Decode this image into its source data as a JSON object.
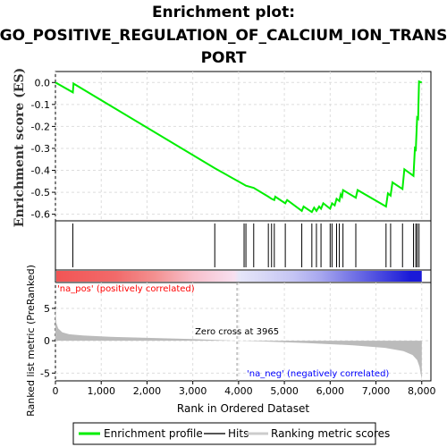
{
  "title_lines": [
    "Enrichment plot:",
    "GO_POSITIVE_REGULATION_OF_CALCIUM_ION_TRANS",
    "PORT"
  ],
  "colors": {
    "profile": "#00ee00",
    "hits": "#000000",
    "metric_fill": "#bbbbbb",
    "pos_label": "#ff0000",
    "neg_label": "#0000ff",
    "grid": "#dddddd"
  },
  "chart_data": [
    {
      "type": "line",
      "name": "Enrichment profile",
      "ylabel": "Enrichment score (ES)",
      "xlim": [
        0,
        8200
      ],
      "ylim": [
        -0.63,
        0.05
      ],
      "yticks": [
        0.0,
        -0.1,
        -0.2,
        -0.3,
        -0.4,
        -0.5,
        -0.6
      ],
      "ytick_labels": [
        "0.0",
        "-0.1",
        "-0.2",
        "-0.3",
        "-0.4",
        "-0.5",
        "-0.6"
      ],
      "grid": true,
      "points": [
        [
          0,
          0.0
        ],
        [
          380,
          -0.045
        ],
        [
          395,
          -0.005
        ],
        [
          3480,
          -0.39
        ],
        [
          4120,
          -0.465
        ],
        [
          4160,
          -0.47
        ],
        [
          4330,
          -0.48
        ],
        [
          4650,
          -0.52
        ],
        [
          4720,
          -0.53
        ],
        [
          4780,
          -0.535
        ],
        [
          4800,
          -0.52
        ],
        [
          5020,
          -0.55
        ],
        [
          5060,
          -0.535
        ],
        [
          5380,
          -0.585
        ],
        [
          5420,
          -0.565
        ],
        [
          5600,
          -0.59
        ],
        [
          5650,
          -0.57
        ],
        [
          5700,
          -0.585
        ],
        [
          5760,
          -0.565
        ],
        [
          5800,
          -0.575
        ],
        [
          5850,
          -0.55
        ],
        [
          6000,
          -0.575
        ],
        [
          6040,
          -0.55
        ],
        [
          6100,
          -0.56
        ],
        [
          6140,
          -0.53
        ],
        [
          6200,
          -0.54
        ],
        [
          6230,
          -0.51
        ],
        [
          6260,
          -0.52
        ],
        [
          6280,
          -0.49
        ],
        [
          6560,
          -0.525
        ],
        [
          6600,
          -0.49
        ],
        [
          7220,
          -0.565
        ],
        [
          7260,
          -0.505
        ],
        [
          7320,
          -0.515
        ],
        [
          7360,
          -0.455
        ],
        [
          7580,
          -0.485
        ],
        [
          7620,
          -0.395
        ],
        [
          7820,
          -0.425
        ],
        [
          7850,
          -0.3
        ],
        [
          7870,
          -0.305
        ],
        [
          7900,
          -0.16
        ],
        [
          7920,
          -0.165
        ],
        [
          7940,
          0.005
        ],
        [
          8000,
          0.0
        ]
      ]
    },
    {
      "type": "hits",
      "name": "Hits",
      "xlim": [
        0,
        8200
      ],
      "positions": [
        380,
        3480,
        4120,
        4160,
        4330,
        4650,
        4720,
        4780,
        5020,
        5380,
        5600,
        5700,
        5800,
        6000,
        6040,
        6140,
        6200,
        6280,
        6560,
        7220,
        7320,
        7580,
        7820,
        7870,
        7900,
        7940
      ]
    },
    {
      "type": "heatmap",
      "name": "Rank colour bar",
      "xlim": [
        0,
        8200
      ],
      "stops": [
        {
          "x": 0,
          "color": "#f25555"
        },
        {
          "x": 1300,
          "color": "#f26a6a"
        },
        {
          "x": 2150,
          "color": "#f39090"
        },
        {
          "x": 3000,
          "color": "#f8c0cc"
        },
        {
          "x": 3900,
          "color": "#f8e0f0"
        },
        {
          "x": 4000,
          "color": "#e6e6f8"
        },
        {
          "x": 4600,
          "color": "#d6d6f6"
        },
        {
          "x": 5200,
          "color": "#c4c4f4"
        },
        {
          "x": 5800,
          "color": "#a6a6ee"
        },
        {
          "x": 6450,
          "color": "#7676e6"
        },
        {
          "x": 7750,
          "color": "#1a1ad8"
        },
        {
          "x": 8000,
          "color": "#1a1ad8"
        }
      ]
    },
    {
      "type": "area",
      "name": "Ranking metric scores",
      "ylabel": "Ranked list metric (PreRanked)",
      "xlabel": "Rank in Ordered Dataset",
      "xlim": [
        0,
        8200
      ],
      "ylim": [
        -6.2,
        9
      ],
      "yticks": [
        5,
        0,
        -5
      ],
      "ytick_labels": [
        "5",
        "0",
        "-5"
      ],
      "xticks": [
        0,
        1000,
        2000,
        3000,
        4000,
        5000,
        6000,
        7000,
        8000
      ],
      "xtick_labels": [
        "0",
        "1,000",
        "2,000",
        "3,000",
        "4,000",
        "5,000",
        "6,000",
        "7,000",
        "8,000"
      ],
      "grid": true,
      "points": [
        [
          0,
          5.0
        ],
        [
          20,
          2.8
        ],
        [
          60,
          1.9
        ],
        [
          150,
          1.3
        ],
        [
          300,
          1.0
        ],
        [
          600,
          0.8
        ],
        [
          1200,
          0.6
        ],
        [
          2000,
          0.45
        ],
        [
          3000,
          0.25
        ],
        [
          3965,
          0.0
        ],
        [
          4500,
          -0.1
        ],
        [
          5500,
          -0.35
        ],
        [
          6500,
          -0.7
        ],
        [
          7200,
          -1.1
        ],
        [
          7600,
          -1.6
        ],
        [
          7800,
          -2.2
        ],
        [
          7900,
          -3.0
        ],
        [
          7950,
          -4.0
        ],
        [
          8000,
          -6.0
        ]
      ],
      "zero_cross": 3965,
      "zero_cross_label": "Zero cross at 3965",
      "pos_label": "'na_pos' (positively correlated)",
      "neg_label": "'na_neg' (negatively correlated)"
    }
  ],
  "legend": {
    "items": [
      {
        "label": "Enrichment profile",
        "color": "#00ee00"
      },
      {
        "label": "Hits",
        "color": "#555555"
      },
      {
        "label": "Ranking metric scores",
        "color": "#cccccc"
      }
    ]
  }
}
